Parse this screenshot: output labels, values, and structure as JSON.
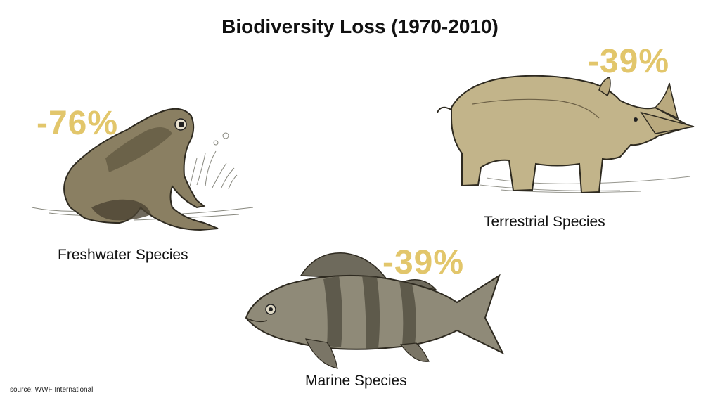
{
  "title": "Biodiversity Loss (1970-2010)",
  "source": "source: WWF International",
  "colors": {
    "accent": "#e2c66b",
    "text": "#111111"
  },
  "categories": [
    {
      "name": "Freshwater Species",
      "change": "-76%",
      "illustration": "frog-illustration"
    },
    {
      "name": "Terrestrial Species",
      "change": "-39%",
      "illustration": "rhino-illustration"
    },
    {
      "name": "Marine Species",
      "change": "-39%",
      "illustration": "fish-illustration"
    }
  ]
}
